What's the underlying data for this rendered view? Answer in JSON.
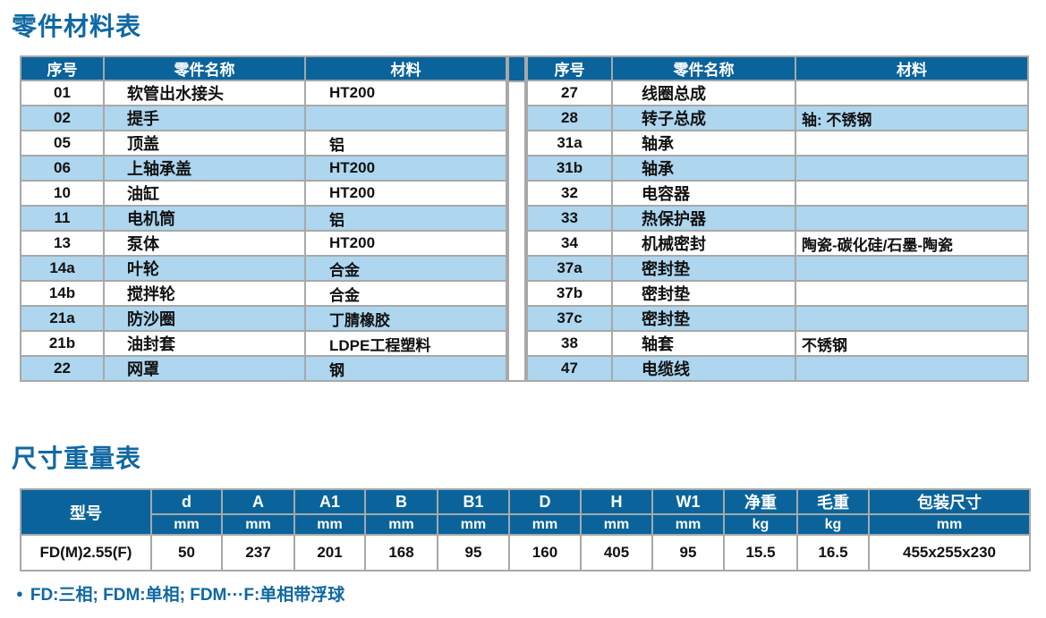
{
  "colors": {
    "header_bg": "#0a649b",
    "row_alt_bg": "#aed6ee",
    "title_color": "#0f68a3",
    "border_color": "#a8a8a8"
  },
  "parts_section": {
    "title": "零件材料表",
    "columns": [
      "序号",
      "零件名称",
      "材料"
    ],
    "left_rows": [
      {
        "no": "01",
        "name": "软管出水接头",
        "material": "HT200"
      },
      {
        "no": "02",
        "name": "提手",
        "material": ""
      },
      {
        "no": "05",
        "name": "顶盖",
        "material": "铝"
      },
      {
        "no": "06",
        "name": "上轴承盖",
        "material": "HT200"
      },
      {
        "no": "10",
        "name": "油缸",
        "material": "HT200"
      },
      {
        "no": "11",
        "name": "电机筒",
        "material": "铝"
      },
      {
        "no": "13",
        "name": "泵体",
        "material": "HT200"
      },
      {
        "no": "14a",
        "name": "叶轮",
        "material": "合金"
      },
      {
        "no": "14b",
        "name": "搅拌轮",
        "material": "合金"
      },
      {
        "no": "21a",
        "name": "防沙圈",
        "material": "丁腈橡胶"
      },
      {
        "no": "21b",
        "name": "油封套",
        "material": "LDPE工程塑料"
      },
      {
        "no": "22",
        "name": "网罩",
        "material": "钢"
      }
    ],
    "right_rows": [
      {
        "no": "27",
        "name": "线圈总成",
        "material": ""
      },
      {
        "no": "28",
        "name": "转子总成",
        "material": "轴: 不锈钢"
      },
      {
        "no": "31a",
        "name": "轴承",
        "material": ""
      },
      {
        "no": "31b",
        "name": "轴承",
        "material": ""
      },
      {
        "no": "32",
        "name": "电容器",
        "material": ""
      },
      {
        "no": "33",
        "name": "热保护器",
        "material": ""
      },
      {
        "no": "34",
        "name": "机械密封",
        "material": "陶瓷-碳化硅/石墨-陶瓷"
      },
      {
        "no": "37a",
        "name": "密封垫",
        "material": ""
      },
      {
        "no": "37b",
        "name": "密封垫",
        "material": ""
      },
      {
        "no": "37c",
        "name": "密封垫",
        "material": ""
      },
      {
        "no": "38",
        "name": "轴套",
        "material": "不锈钢"
      },
      {
        "no": "47",
        "name": "电缆线",
        "material": ""
      }
    ]
  },
  "dimensions_section": {
    "title": "尺寸重量表",
    "model_header": "型号",
    "columns": [
      {
        "label": "d",
        "unit": "mm"
      },
      {
        "label": "A",
        "unit": "mm"
      },
      {
        "label": "A1",
        "unit": "mm"
      },
      {
        "label": "B",
        "unit": "mm"
      },
      {
        "label": "B1",
        "unit": "mm"
      },
      {
        "label": "D",
        "unit": "mm"
      },
      {
        "label": "H",
        "unit": "mm"
      },
      {
        "label": "W1",
        "unit": "mm"
      },
      {
        "label": "净重",
        "unit": "kg"
      },
      {
        "label": "毛重",
        "unit": "kg"
      },
      {
        "label": "包装尺寸",
        "unit": "mm"
      }
    ],
    "rows": [
      {
        "model": "FD(M)2.55(F)",
        "values": [
          "50",
          "237",
          "201",
          "168",
          "95",
          "160",
          "405",
          "95",
          "15.5",
          "16.5",
          "455x255x230"
        ]
      }
    ],
    "footnote_bullet": "●",
    "footnote": "FD:三相; FDM:单相; FDM···F:单相带浮球"
  }
}
